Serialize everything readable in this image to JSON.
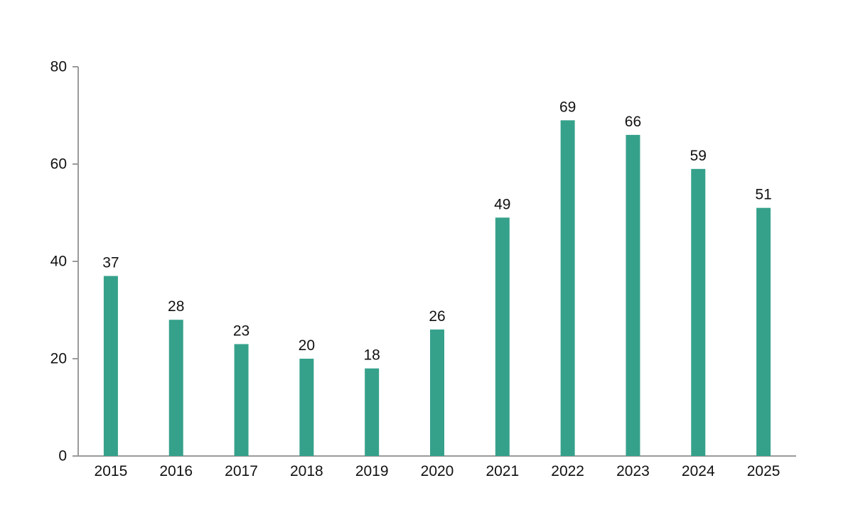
{
  "chart_data": {
    "type": "bar",
    "categories": [
      "2015",
      "2016",
      "2017",
      "2018",
      "2019",
      "2020",
      "2021",
      "2022",
      "2023",
      "2024",
      "2025"
    ],
    "values": [
      37,
      28,
      23,
      20,
      18,
      26,
      49,
      69,
      66,
      59,
      51
    ],
    "y_ticks": [
      "0",
      "20",
      "40",
      "60",
      "80"
    ],
    "ylim": [
      0,
      80
    ],
    "title": "",
    "xlabel": "",
    "ylabel": "",
    "grid": false,
    "legend": "none",
    "colors": {
      "bar": "#36a18b",
      "axis": "#9a9a9a"
    }
  }
}
